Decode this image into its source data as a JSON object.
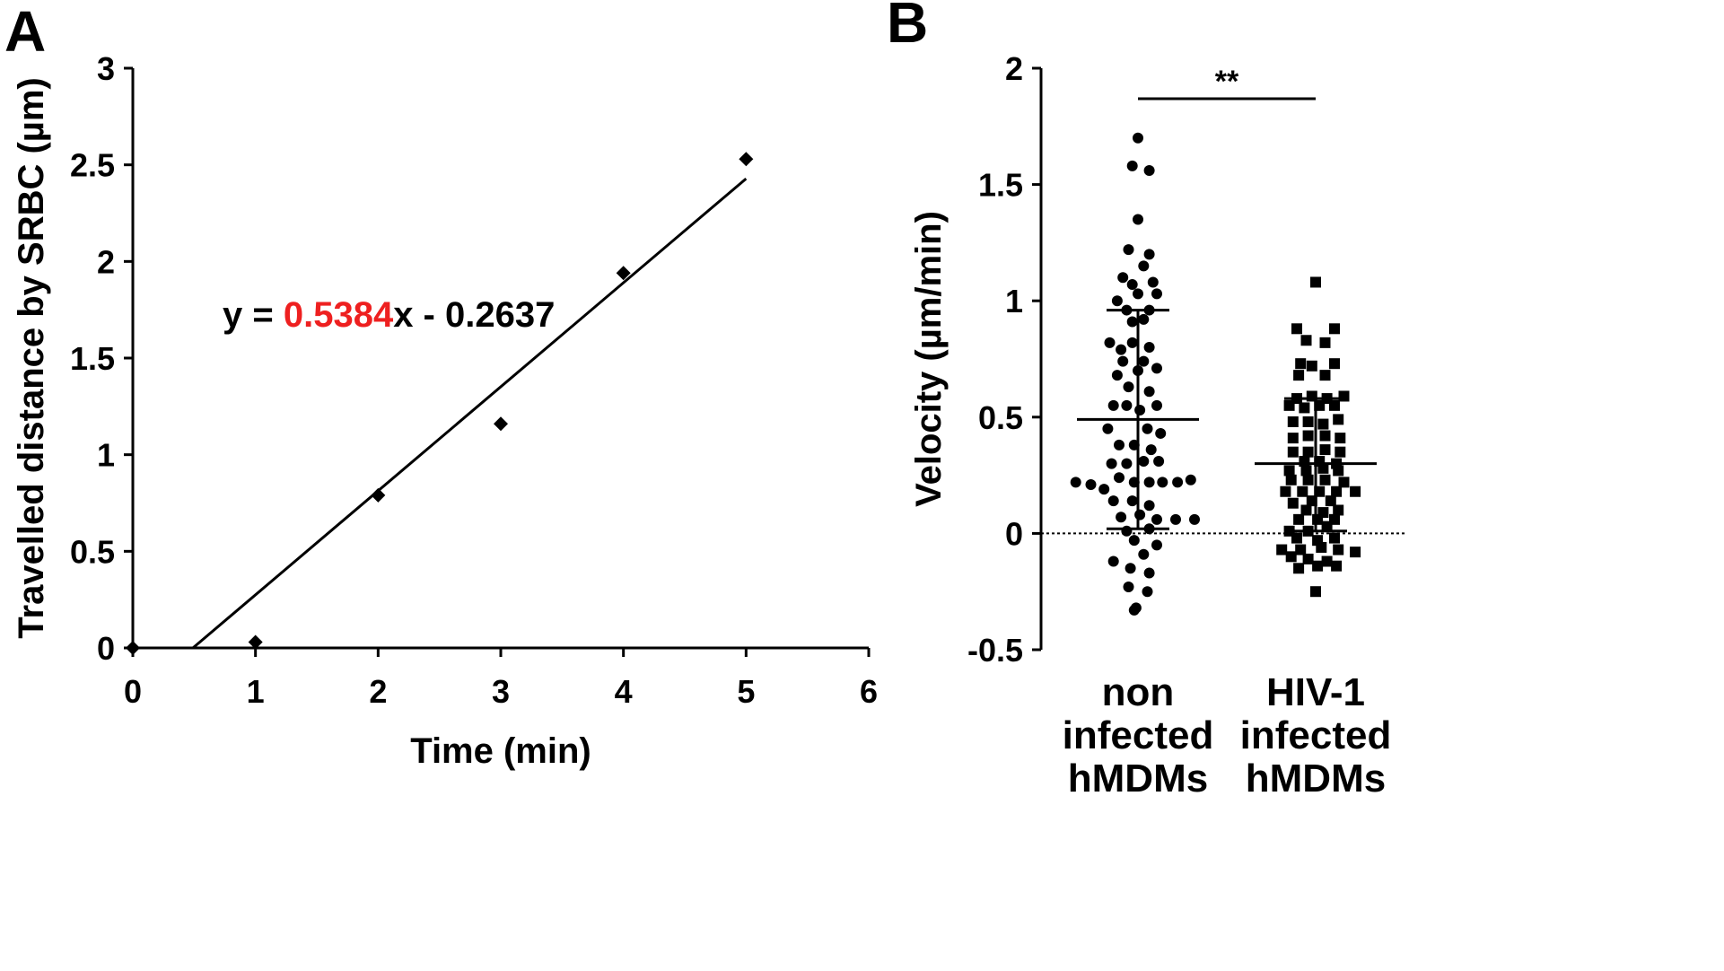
{
  "chart_data": [
    {
      "panel_label": "A",
      "type": "scatter",
      "xlabel": "Time (min)",
      "ylabel": "Travelled distance by SRBC (µm)",
      "xlim": [
        0,
        6
      ],
      "ylim": [
        0,
        3
      ],
      "xticks": [
        "0",
        "1",
        "2",
        "3",
        "4",
        "5",
        "6"
      ],
      "yticks": [
        "0",
        "0.5",
        "1",
        "1.5",
        "2",
        "2.5",
        "3"
      ],
      "x": [
        0,
        1,
        2,
        3,
        4,
        5
      ],
      "y": [
        0,
        0.03,
        0.79,
        1.16,
        1.94,
        2.53
      ],
      "trendline": {
        "slope": 0.5384,
        "intercept": -0.2637,
        "x_range": [
          0.49,
          5
        ]
      },
      "equation": {
        "prefix": "y = ",
        "slope_text": "0.5384",
        "suffix": "x - 0.2637"
      },
      "colors": {
        "marker": "#000000",
        "slope_text": "#ee2020"
      }
    },
    {
      "panel_label": "B",
      "type": "scatter",
      "ylabel": "Velocity (µm/min)",
      "ylim": [
        -0.5,
        2
      ],
      "yticks": [
        "-0.5",
        "0",
        "0.5",
        "1",
        "1.5",
        "2"
      ],
      "reference_line": 0,
      "significance": "**",
      "groups": [
        {
          "name": "non infected hMDMs",
          "label_lines": [
            "non",
            "infected",
            "hMDMs"
          ],
          "marker": "circle",
          "mean": 0.49,
          "sd_upper": 0.96,
          "sd_lower": 0.02,
          "points": [
            [
              0,
              1.7
            ],
            [
              -0.03,
              1.58
            ],
            [
              0.06,
              1.56
            ],
            [
              0,
              1.35
            ],
            [
              -0.05,
              1.22
            ],
            [
              0.06,
              1.2
            ],
            [
              0.03,
              1.15
            ],
            [
              -0.08,
              1.1
            ],
            [
              -0.03,
              1.07
            ],
            [
              0.08,
              1.08
            ],
            [
              -0.11,
              1.0
            ],
            [
              0,
              1.03
            ],
            [
              0.1,
              1.03
            ],
            [
              -0.06,
              0.96
            ],
            [
              0.06,
              0.96
            ],
            [
              -0.03,
              0.91
            ],
            [
              0.03,
              0.92
            ],
            [
              -0.15,
              0.82
            ],
            [
              -0.09,
              0.79
            ],
            [
              -0.03,
              0.82
            ],
            [
              0.06,
              0.8
            ],
            [
              -0.08,
              0.74
            ],
            [
              0.03,
              0.74
            ],
            [
              0.1,
              0.71
            ],
            [
              -0.11,
              0.68
            ],
            [
              0,
              0.7
            ],
            [
              -0.05,
              0.63
            ],
            [
              0.06,
              0.61
            ],
            [
              -0.13,
              0.55
            ],
            [
              -0.06,
              0.55
            ],
            [
              0.01,
              0.53
            ],
            [
              0.1,
              0.55
            ],
            [
              -0.16,
              0.45
            ],
            [
              0.05,
              0.45
            ],
            [
              0.12,
              0.43
            ],
            [
              -0.1,
              0.38
            ],
            [
              -0.02,
              0.38
            ],
            [
              0.07,
              0.36
            ],
            [
              -0.14,
              0.3
            ],
            [
              -0.06,
              0.3
            ],
            [
              0.03,
              0.31
            ],
            [
              0.11,
              0.31
            ],
            [
              -0.33,
              0.22
            ],
            [
              -0.25,
              0.21
            ],
            [
              -0.18,
              0.19
            ],
            [
              -0.1,
              0.24
            ],
            [
              -0.02,
              0.22
            ],
            [
              0.06,
              0.22
            ],
            [
              0.13,
              0.22
            ],
            [
              0.21,
              0.22
            ],
            [
              0.28,
              0.23
            ],
            [
              -0.13,
              0.14
            ],
            [
              -0.03,
              0.14
            ],
            [
              0.06,
              0.12
            ],
            [
              -0.09,
              0.07
            ],
            [
              0.01,
              0.08
            ],
            [
              0.1,
              0.06
            ],
            [
              0.2,
              0.06
            ],
            [
              0.3,
              0.06
            ],
            [
              -0.06,
              0.01
            ],
            [
              0.06,
              0.02
            ],
            [
              -0.02,
              -0.03
            ],
            [
              0.1,
              -0.05
            ],
            [
              0.03,
              -0.09
            ],
            [
              -0.13,
              -0.12
            ],
            [
              -0.04,
              -0.15
            ],
            [
              0.06,
              -0.17
            ],
            [
              -0.05,
              -0.23
            ],
            [
              0.05,
              -0.25
            ],
            [
              -0.01,
              -0.32
            ],
            [
              -0.02,
              -0.33
            ]
          ]
        },
        {
          "name": "HIV-1 infected hMDMs",
          "label_lines": [
            "HIV-1",
            "infected",
            "hMDMs"
          ],
          "marker": "square",
          "mean": 0.3,
          "sd_upper": 0.58,
          "sd_lower": 0.01,
          "points": [
            [
              0,
              1.08
            ],
            [
              -0.1,
              0.88
            ],
            [
              0.1,
              0.88
            ],
            [
              -0.05,
              0.83
            ],
            [
              0.05,
              0.82
            ],
            [
              -0.08,
              0.73
            ],
            [
              0.1,
              0.73
            ],
            [
              -0.02,
              0.72
            ],
            [
              -0.09,
              0.68
            ],
            [
              0.05,
              0.68
            ],
            [
              -0.1,
              0.58
            ],
            [
              -0.02,
              0.59
            ],
            [
              0.06,
              0.58
            ],
            [
              0.15,
              0.59
            ],
            [
              -0.14,
              0.55
            ],
            [
              -0.06,
              0.54
            ],
            [
              0.02,
              0.55
            ],
            [
              0.1,
              0.55
            ],
            [
              -0.12,
              0.48
            ],
            [
              -0.04,
              0.48
            ],
            [
              0.04,
              0.47
            ],
            [
              0.12,
              0.49
            ],
            [
              -0.12,
              0.41
            ],
            [
              -0.04,
              0.42
            ],
            [
              0.05,
              0.42
            ],
            [
              0.13,
              0.41
            ],
            [
              -0.12,
              0.35
            ],
            [
              -0.04,
              0.35
            ],
            [
              0.05,
              0.36
            ],
            [
              0.13,
              0.35
            ],
            [
              -0.06,
              0.31
            ],
            [
              0.02,
              0.31
            ],
            [
              0.11,
              0.3
            ],
            [
              -0.14,
              0.27
            ],
            [
              -0.05,
              0.27
            ],
            [
              0.04,
              0.28
            ],
            [
              0.12,
              0.27
            ],
            [
              -0.13,
              0.23
            ],
            [
              -0.04,
              0.23
            ],
            [
              0.05,
              0.23
            ],
            [
              0.15,
              0.22
            ],
            [
              -0.16,
              0.18
            ],
            [
              -0.07,
              0.18
            ],
            [
              0.02,
              0.18
            ],
            [
              0.11,
              0.18
            ],
            [
              0.21,
              0.18
            ],
            [
              -0.12,
              0.13
            ],
            [
              -0.02,
              0.14
            ],
            [
              0.08,
              0.14
            ],
            [
              -0.05,
              0.1
            ],
            [
              0.04,
              0.09
            ],
            [
              0.12,
              0.1
            ],
            [
              -0.09,
              0.06
            ],
            [
              0.01,
              0.06
            ],
            [
              0.1,
              0.06
            ],
            [
              -0.14,
              0.01
            ],
            [
              -0.04,
              0.01
            ],
            [
              0.06,
              0.03
            ],
            [
              -0.1,
              -0.02
            ],
            [
              0.01,
              -0.03
            ],
            [
              0.1,
              -0.02
            ],
            [
              -0.18,
              -0.07
            ],
            [
              -0.08,
              -0.07
            ],
            [
              0.03,
              -0.06
            ],
            [
              0.12,
              -0.07
            ],
            [
              0.21,
              -0.08
            ],
            [
              -0.13,
              -0.1
            ],
            [
              -0.04,
              -0.11
            ],
            [
              0.06,
              -0.12
            ],
            [
              -0.09,
              -0.15
            ],
            [
              0.01,
              -0.14
            ],
            [
              0.11,
              -0.14
            ],
            [
              0,
              -0.25
            ]
          ]
        }
      ]
    }
  ]
}
